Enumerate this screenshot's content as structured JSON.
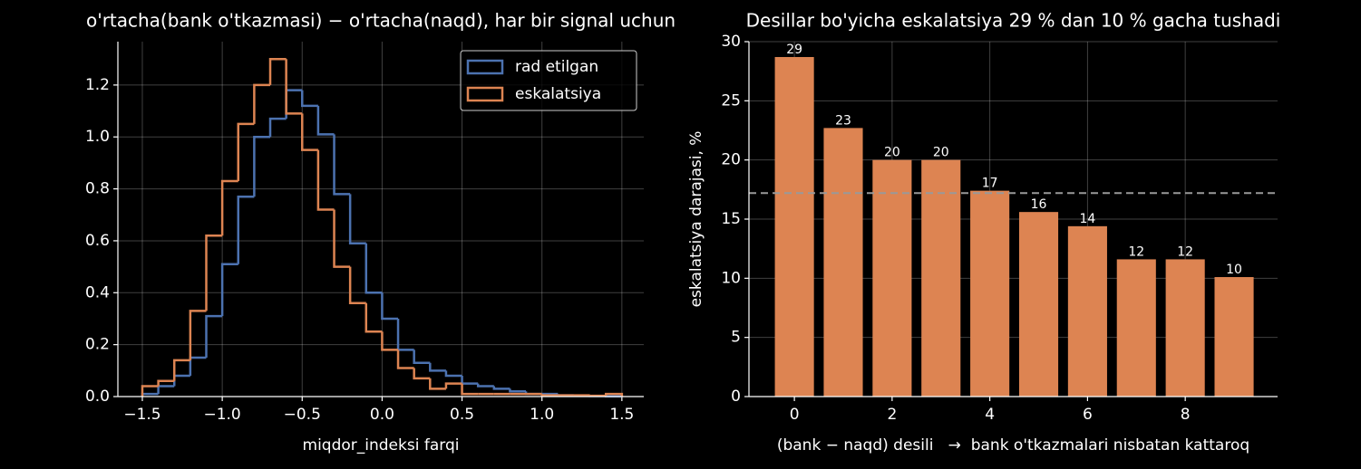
{
  "chart_data": [
    {
      "type": "histogram",
      "title": "o'rtacha(bank o'tkazmasi) − o'rtacha(naqd), har bir signal uchun",
      "x_label": "miqdor_indeksi farqi",
      "bins": [
        -1.5,
        -1.4,
        -1.3,
        -1.2,
        -1.1,
        -1.0,
        -0.9,
        -0.8,
        -0.7,
        -0.6,
        -0.5,
        -0.4,
        -0.3,
        -0.2,
        -0.1,
        0.0,
        0.1,
        0.2,
        0.3,
        0.4,
        0.5,
        0.6,
        0.7,
        0.8,
        0.9,
        1.0,
        1.1,
        1.2,
        1.3,
        1.4,
        1.5
      ],
      "series": [
        {
          "name": "rad etilgan",
          "color": "#4c72b0",
          "values": [
            0.01,
            0.04,
            0.08,
            0.15,
            0.31,
            0.51,
            0.77,
            1.0,
            1.07,
            1.18,
            1.12,
            1.01,
            0.78,
            0.59,
            0.4,
            0.3,
            0.18,
            0.13,
            0.1,
            0.08,
            0.05,
            0.04,
            0.03,
            0.02,
            0.01,
            0.01,
            0.005,
            0.003,
            0.002,
            0.001
          ]
        },
        {
          "name": "eskalatsiya",
          "color": "#dd8452",
          "values": [
            0.04,
            0.06,
            0.14,
            0.33,
            0.62,
            0.83,
            1.05,
            1.2,
            1.3,
            1.09,
            0.95,
            0.72,
            0.5,
            0.36,
            0.25,
            0.18,
            0.11,
            0.07,
            0.03,
            0.05,
            0.01,
            0.01,
            0.01,
            0.01,
            0.01,
            0.005,
            0.005,
            0.005,
            0.003,
            0.01
          ]
        }
      ],
      "xlim": [
        -1.653,
        1.637
      ],
      "ylim": [
        0,
        1.367
      ],
      "xticks": [
        {
          "value": -1.5,
          "label": "−1.5"
        },
        {
          "value": -1.0,
          "label": "−1.0"
        },
        {
          "value": -0.5,
          "label": "−0.5"
        },
        {
          "value": 0,
          "label": "0.0"
        },
        0.5,
        {
          "value": 1,
          "label": "1.0"
        },
        1.5
      ],
      "yticks": [
        {
          "value": 0,
          "label": "0.0"
        },
        0.2,
        0.4,
        0.6,
        0.8,
        {
          "value": 1,
          "label": "1.0"
        },
        1.2
      ],
      "grid": true,
      "legend": "upper-right"
    },
    {
      "type": "bar",
      "title": "Desillar bo'yicha eskalatsiya 29 % dan 10 % gacha tushadi",
      "x_label": "(bank − naqd) desili   →  bank o'tkazmalari nisbatan kattaroq",
      "y_label": "eskalatsiya darajasi, %",
      "x": [
        0,
        1,
        2,
        3,
        4,
        5,
        6,
        7,
        8,
        9
      ],
      "values": [
        28.7,
        22.7,
        20.0,
        20.0,
        17.4,
        15.6,
        14.4,
        11.6,
        11.6,
        10.1
      ],
      "value_labels": [
        "29",
        "23",
        "20",
        "20",
        "17",
        "16",
        "14",
        "12",
        "12",
        "10"
      ],
      "color": "#dd8452",
      "hline": 17.2,
      "xlim": [
        -0.93,
        9.89
      ],
      "ylim": [
        0,
        30
      ],
      "xticks": [
        0,
        2,
        4,
        6,
        8
      ],
      "yticks": [
        0,
        5,
        10,
        15,
        20,
        25,
        30
      ],
      "grid": true
    }
  ]
}
